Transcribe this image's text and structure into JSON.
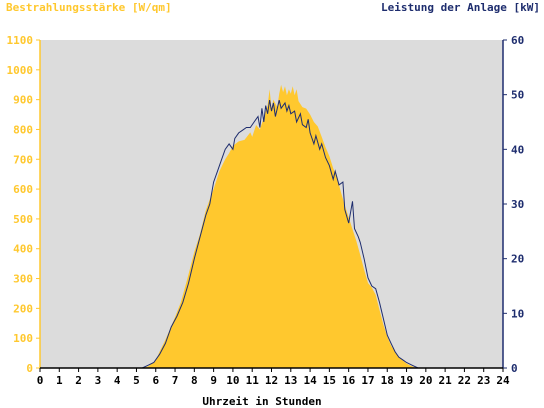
{
  "chart_data": {
    "type": "area",
    "left_title": "Bestrahlungsstärke [W/qm]",
    "right_title": "Leistung der Anlage [kW]",
    "xlabel": "Uhrzeit in Stunden",
    "xlim": [
      0,
      24
    ],
    "x_ticks": [
      "0",
      "1",
      "2",
      "3",
      "4",
      "5",
      "6",
      "7",
      "8",
      "9",
      "10",
      "11",
      "12",
      "13",
      "14",
      "15",
      "16",
      "17",
      "18",
      "19",
      "20",
      "21",
      "22",
      "23",
      "24"
    ],
    "y_left": {
      "lim": [
        0,
        1100
      ],
      "ticks": [
        "0",
        "100",
        "200",
        "300",
        "400",
        "500",
        "600",
        "700",
        "800",
        "900",
        "1000",
        "1100"
      ],
      "color": "#FFC82E"
    },
    "y_right": {
      "lim": [
        0,
        60
      ],
      "ticks": [
        "0",
        "10",
        "20",
        "30",
        "40",
        "50",
        "60"
      ],
      "color": "#1E2D6E"
    },
    "plot_background": "#DCDCDC",
    "series": [
      {
        "name": "Bestrahlungsstärke [W/qm]",
        "axis": "left",
        "style": "filled area",
        "color": "#FFC82E",
        "points": [
          [
            0,
            0
          ],
          [
            5.3,
            0
          ],
          [
            5.6,
            5
          ],
          [
            5.8,
            15
          ],
          [
            6.0,
            25
          ],
          [
            6.2,
            55
          ],
          [
            6.5,
            95
          ],
          [
            6.8,
            140
          ],
          [
            7.0,
            170
          ],
          [
            7.3,
            220
          ],
          [
            7.6,
            290
          ],
          [
            7.8,
            340
          ],
          [
            8.0,
            390
          ],
          [
            8.3,
            450
          ],
          [
            8.6,
            530
          ],
          [
            9.0,
            600
          ],
          [
            9.3,
            660
          ],
          [
            9.6,
            700
          ],
          [
            9.8,
            720
          ],
          [
            10.0,
            745
          ],
          [
            10.3,
            760
          ],
          [
            10.6,
            765
          ],
          [
            10.9,
            790
          ],
          [
            11.0,
            775
          ],
          [
            11.2,
            815
          ],
          [
            11.4,
            800
          ],
          [
            11.6,
            840
          ],
          [
            11.8,
            880
          ],
          [
            11.9,
            935
          ],
          [
            12.0,
            870
          ],
          [
            12.1,
            900
          ],
          [
            12.3,
            875
          ],
          [
            12.4,
            920
          ],
          [
            12.5,
            950
          ],
          [
            12.6,
            925
          ],
          [
            12.7,
            945
          ],
          [
            12.8,
            915
          ],
          [
            12.9,
            935
          ],
          [
            13.0,
            920
          ],
          [
            13.1,
            945
          ],
          [
            13.2,
            915
          ],
          [
            13.3,
            935
          ],
          [
            13.4,
            895
          ],
          [
            13.6,
            875
          ],
          [
            13.8,
            870
          ],
          [
            14.0,
            850
          ],
          [
            14.2,
            825
          ],
          [
            14.4,
            810
          ],
          [
            14.6,
            775
          ],
          [
            14.8,
            740
          ],
          [
            15.0,
            710
          ],
          [
            15.2,
            670
          ],
          [
            15.4,
            640
          ],
          [
            15.6,
            590
          ],
          [
            15.8,
            545
          ],
          [
            16.0,
            505
          ],
          [
            16.2,
            465
          ],
          [
            16.4,
            425
          ],
          [
            16.6,
            380
          ],
          [
            16.8,
            330
          ],
          [
            17.0,
            285
          ],
          [
            17.2,
            270
          ],
          [
            17.4,
            245
          ],
          [
            17.6,
            195
          ],
          [
            17.8,
            145
          ],
          [
            18.0,
            105
          ],
          [
            18.2,
            75
          ],
          [
            18.4,
            55
          ],
          [
            18.6,
            35
          ],
          [
            18.8,
            25
          ],
          [
            19.0,
            15
          ],
          [
            19.2,
            8
          ],
          [
            19.4,
            3
          ],
          [
            19.6,
            0
          ],
          [
            24,
            0
          ]
        ]
      },
      {
        "name": "Leistung der Anlage [kW]",
        "axis": "right",
        "style": "line",
        "color": "#1E2D6E",
        "points": [
          [
            0,
            0
          ],
          [
            5.3,
            0
          ],
          [
            5.6,
            0.5
          ],
          [
            5.9,
            1
          ],
          [
            6.2,
            2.5
          ],
          [
            6.5,
            4.5
          ],
          [
            6.8,
            7.5
          ],
          [
            7.1,
            9.5
          ],
          [
            7.4,
            12
          ],
          [
            7.7,
            15.5
          ],
          [
            8.0,
            20
          ],
          [
            8.3,
            24
          ],
          [
            8.6,
            28
          ],
          [
            8.8,
            30
          ],
          [
            9.0,
            34
          ],
          [
            9.2,
            36
          ],
          [
            9.4,
            38
          ],
          [
            9.6,
            40
          ],
          [
            9.8,
            41
          ],
          [
            10.0,
            40
          ],
          [
            10.1,
            42
          ],
          [
            10.3,
            43
          ],
          [
            10.5,
            43.5
          ],
          [
            10.7,
            44
          ],
          [
            10.9,
            44
          ],
          [
            11.1,
            45
          ],
          [
            11.3,
            46
          ],
          [
            11.4,
            44
          ],
          [
            11.5,
            47.5
          ],
          [
            11.6,
            45
          ],
          [
            11.7,
            48
          ],
          [
            11.8,
            46.5
          ],
          [
            11.9,
            49
          ],
          [
            12.0,
            47
          ],
          [
            12.1,
            48.5
          ],
          [
            12.2,
            46
          ],
          [
            12.4,
            49
          ],
          [
            12.5,
            47.5
          ],
          [
            12.7,
            48.5
          ],
          [
            12.8,
            47
          ],
          [
            12.9,
            48
          ],
          [
            13.0,
            46.5
          ],
          [
            13.2,
            47
          ],
          [
            13.3,
            45
          ],
          [
            13.5,
            46.5
          ],
          [
            13.6,
            44.5
          ],
          [
            13.8,
            44
          ],
          [
            13.9,
            45.5
          ],
          [
            14.0,
            43
          ],
          [
            14.2,
            41
          ],
          [
            14.3,
            42.5
          ],
          [
            14.5,
            40
          ],
          [
            14.6,
            41
          ],
          [
            14.8,
            38.5
          ],
          [
            15.0,
            37
          ],
          [
            15.2,
            34.5
          ],
          [
            15.3,
            36
          ],
          [
            15.5,
            33.5
          ],
          [
            15.7,
            34
          ],
          [
            15.8,
            29
          ],
          [
            16.0,
            26.5
          ],
          [
            16.1,
            28.5
          ],
          [
            16.2,
            30.5
          ],
          [
            16.3,
            25.5
          ],
          [
            16.5,
            24
          ],
          [
            16.6,
            23
          ],
          [
            16.8,
            20
          ],
          [
            17.0,
            16.5
          ],
          [
            17.2,
            15
          ],
          [
            17.4,
            14.5
          ],
          [
            17.6,
            12
          ],
          [
            17.8,
            9
          ],
          [
            18.0,
            6
          ],
          [
            18.2,
            4.5
          ],
          [
            18.4,
            3
          ],
          [
            18.6,
            2
          ],
          [
            18.8,
            1.5
          ],
          [
            19.0,
            1
          ],
          [
            19.3,
            0.5
          ],
          [
            19.6,
            0
          ],
          [
            24,
            0
          ]
        ]
      }
    ]
  }
}
